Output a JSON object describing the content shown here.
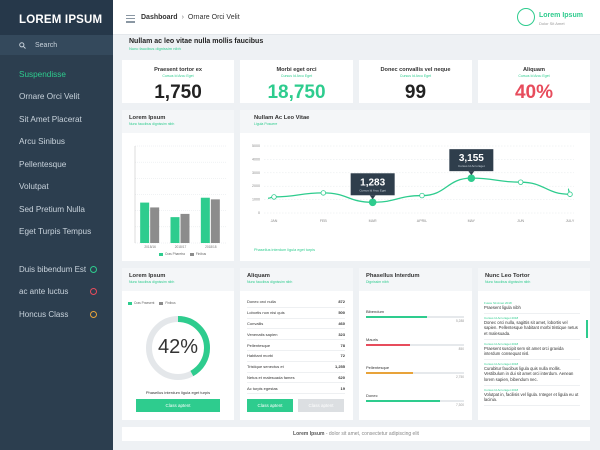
{
  "brand": "LOREM IPSUM",
  "search": {
    "label": "Search"
  },
  "nav": [
    {
      "label": "Suspendisse",
      "active": true
    },
    {
      "label": "Ornare Orci Velit"
    },
    {
      "label": "Sit Amet Placerat"
    },
    {
      "label": "Arcu Sinibus"
    },
    {
      "label": "Pellentesque"
    },
    {
      "label": "Volutpat"
    },
    {
      "label": "Sed Pretium Nulla"
    },
    {
      "label": "Eget Turpis Tempus"
    }
  ],
  "nav_bottom": [
    {
      "label": "Duis bibendum Est",
      "color": "#2ecc8e"
    },
    {
      "label": "ac ante luctus",
      "color": "#e74c5c"
    },
    {
      "label": "Honcus Class",
      "color": "#e8a33a"
    }
  ],
  "breadcrumb": {
    "home": "Dashboard",
    "current": "Ornare Orci Velit"
  },
  "user": {
    "name": "Lorem Ipsum",
    "sub": "Dolor Sit Amet"
  },
  "page": {
    "title": "Nullam ac leo vitae nulla mollis faucibus",
    "subtitle": "Nunc faucibus dignissim nibh"
  },
  "stats": [
    {
      "title": "Praesent tortor ex",
      "sub": "Cursus Id Arcu Eget",
      "value": "1,750",
      "color": "#222222"
    },
    {
      "title": "Morbi eget orci",
      "sub": "Cursus Id Arcu Eget",
      "value": "18,750",
      "color": "#2ecc8e"
    },
    {
      "title": "Donec convallis vel neque",
      "sub": "Cursus Id Arcu Eget",
      "value": "99",
      "color": "#222222"
    },
    {
      "title": "Aliquam",
      "sub": "Cursus Id Arcu Eget",
      "value": "40%",
      "color": "#e74c5c"
    }
  ],
  "bar_card": {
    "title": "Lorem Ipsum",
    "sub": "Nunc faucibus dignissim nibh",
    "legend": [
      "Cras Pharetra",
      "Finibus"
    ]
  },
  "line_card": {
    "title": "Nullam Ac Leo Vitae",
    "sub": "Ligula Posuere",
    "footer": "Phasellus interdum ligula eget turpis"
  },
  "chart_data": [
    {
      "type": "bar",
      "categories": [
        "2018/16",
        "2018/17",
        "2018/18"
      ],
      "ylim": [
        0,
        6
      ],
      "series": [
        {
          "name": "Cras Pharetra",
          "color": "#2ecc8e",
          "values": [
            2.5,
            1.6,
            2.8
          ]
        },
        {
          "name": "Finibus",
          "color": "#8c8c8c",
          "values": [
            2.2,
            1.8,
            2.7
          ]
        }
      ]
    },
    {
      "type": "line",
      "categories": [
        "JAN",
        "FEB",
        "MAR",
        "APRIL",
        "MAY",
        "JUN",
        "JULY"
      ],
      "ylim": [
        0,
        5000
      ],
      "yticks": [
        0,
        1000,
        2000,
        3000,
        4000,
        5000
      ],
      "values": [
        1200,
        1500,
        800,
        1300,
        2600,
        2300,
        1400
      ],
      "callouts": [
        {
          "value": "1,283",
          "sub": "Cursus Id Arcu Eget"
        },
        {
          "value": "3,155",
          "sub": "Cursus Id Arcu Eget"
        }
      ],
      "color": "#2ecc8e"
    }
  ],
  "donut_card": {
    "title": "Lorem Ipsum",
    "sub": "Nunc faucibus dignissim nibh",
    "legend": [
      "Cras Praesent",
      "Finibus"
    ],
    "percent": 0.42,
    "label": "42%",
    "caption": "Phasellus interdum ligula eget turpis",
    "button": "Class aptent"
  },
  "list_card": {
    "title": "Aliquam",
    "sub": "Nunc faucibus dignissim nibh",
    "rows": [
      {
        "label": "Donec orci nulla",
        "value": "872"
      },
      {
        "label": "Lobortis non nisi quis",
        "value": "500"
      },
      {
        "label": "Convallis",
        "value": "460"
      },
      {
        "label": "Venenatis sapien",
        "value": "323"
      },
      {
        "label": "Pellentesque",
        "value": "78"
      },
      {
        "label": "Habitant morbi",
        "value": "72"
      },
      {
        "label": "Tristique senectus et",
        "value": "1,255"
      },
      {
        "label": "Netus et malesuada fames",
        "value": "620"
      },
      {
        "label": "Ac turpis egestas",
        "value": "19"
      }
    ],
    "button_primary": "Class aptent",
    "button_secondary": "Class aptent"
  },
  "progress_card": {
    "title": "Phasellus Interdum",
    "sub": "Dignissim nibh",
    "items": [
      {
        "label": "Bibendum",
        "value": "5,288",
        "fraction": 0.62,
        "color": "#2ecc8e"
      },
      {
        "label": "Mauris",
        "value": "850",
        "fraction": 0.45,
        "color": "#e74c5c"
      },
      {
        "label": "Pellentesque",
        "value": "2,750",
        "fraction": 0.48,
        "color": "#e8a33a"
      },
      {
        "label": "Donec",
        "value": "7,300",
        "fraction": 0.75,
        "color": "#2ecc8e"
      }
    ]
  },
  "news_card": {
    "title": "Nunc Leo Tortor",
    "sub": "Nunc faucibus dignissim nibh",
    "items": [
      {
        "date": "Fusce Sit Amet 2018",
        "text": "Praesent ligula nibh"
      },
      {
        "date": "Cursus Id Arcu Eget 2018",
        "text": "Donec orci nulla, sagittis sit amet, lobortis vel sapien. Pellentesque habitant morbi tristique netus et malesuada."
      },
      {
        "date": "Cursus Id Arcu Eget 2018",
        "text": "Praesent suscipit sem sit amet orci gravida interdum consequat nisl."
      },
      {
        "date": "Cursus Id Arcu Eget 2018",
        "text": "Curabitur faucibus ligula quis nulla mollis. Vestibulum in dui sit amet orci interdum. Aenean lorem sapien, bibendum nec."
      },
      {
        "date": "Cursus Id Arcu Eget 2018",
        "text": "Volutpat in, facilisis vel ligula. Integer et ligula eu ut lacinia."
      }
    ]
  },
  "footer": {
    "bold": "Lorem Ipsum",
    "text": " - dolor sit amet, consectetur adipiscing elit"
  }
}
